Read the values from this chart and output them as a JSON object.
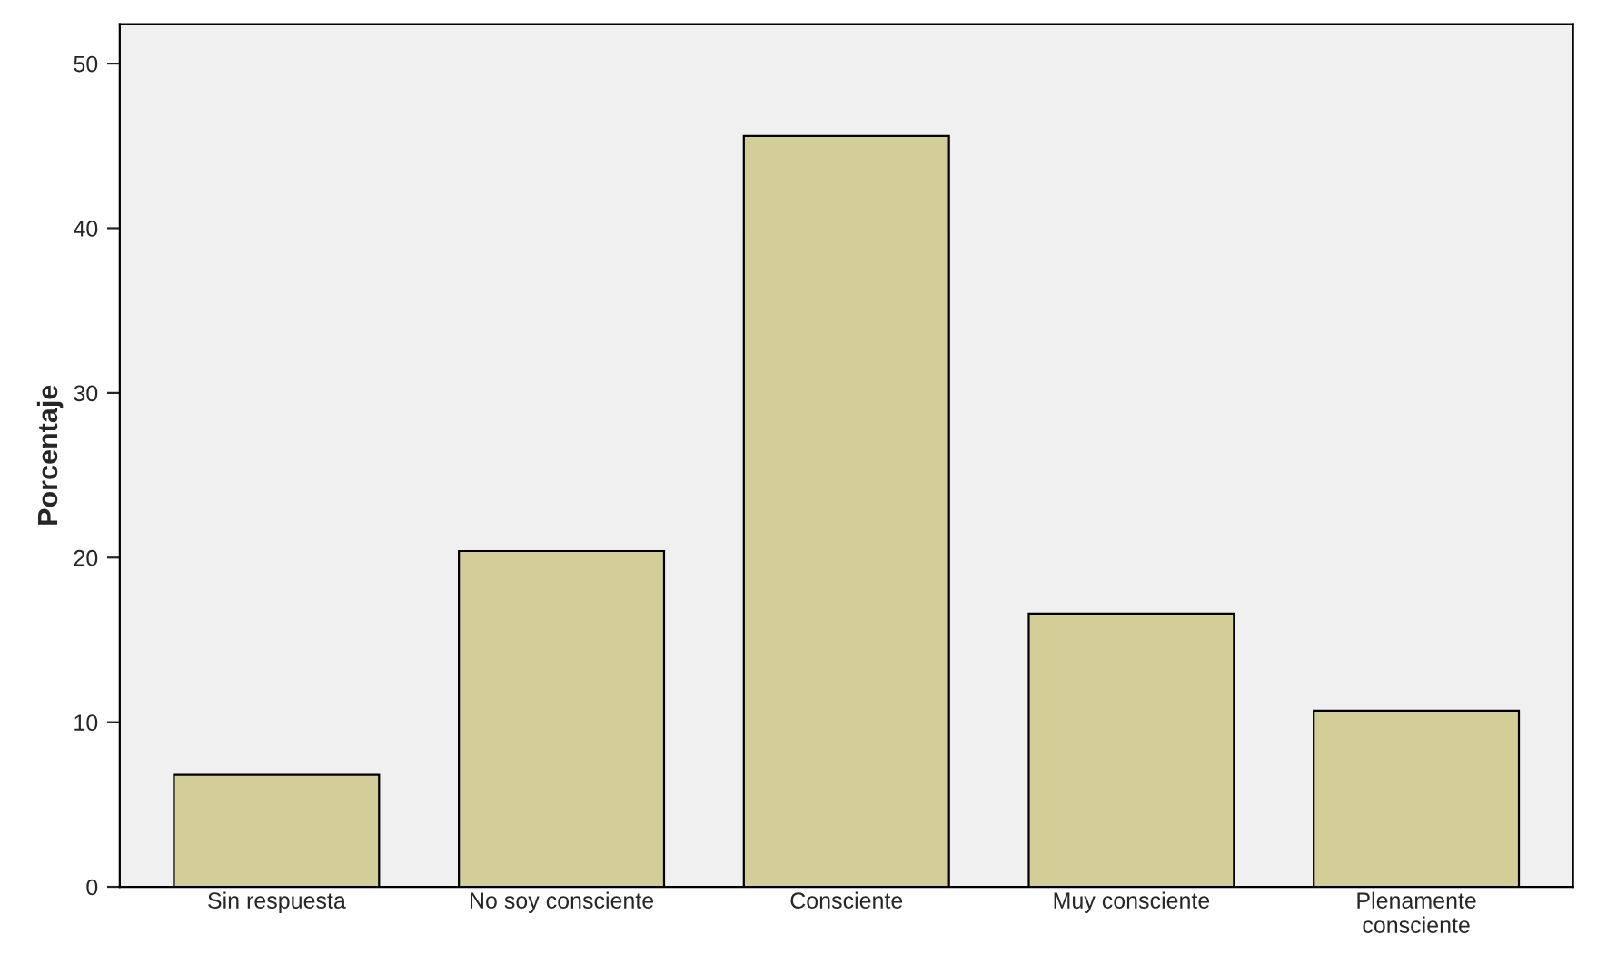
{
  "chart_data": {
    "type": "bar",
    "ylabel": "Porcentaje",
    "categories": [
      "Sin respuesta",
      "No soy consciente",
      "Consciente",
      "Muy consciente",
      "Plenamente\nconsciente"
    ],
    "values": [
      6.8,
      20.4,
      45.6,
      16.6,
      10.7
    ],
    "color": "#d3ce97",
    "ylim": [
      0,
      52.4
    ],
    "yticks": [
      0,
      10,
      20,
      30,
      40,
      50
    ],
    "grid": false
  }
}
